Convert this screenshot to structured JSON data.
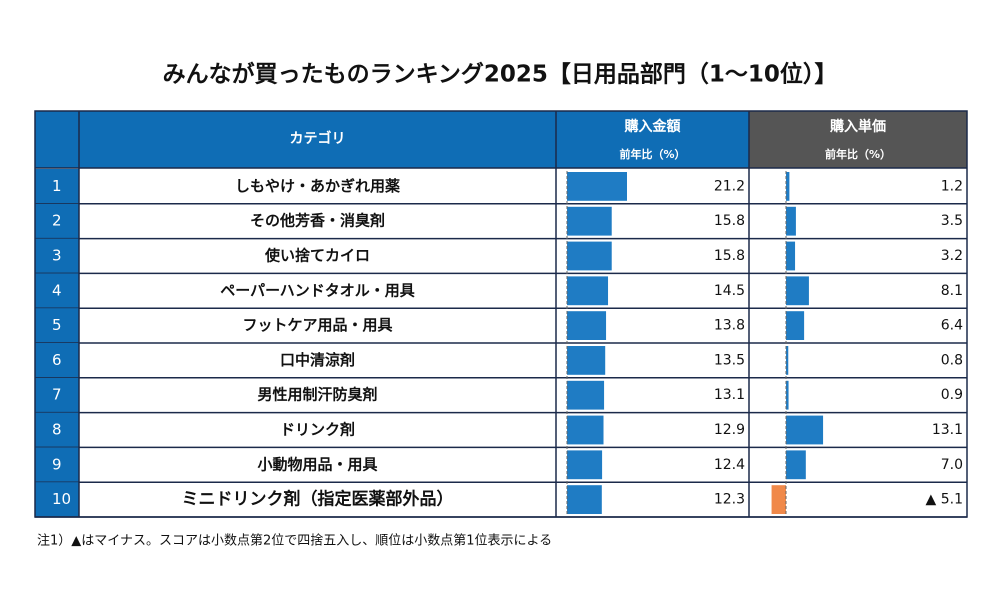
{
  "title": "みんなが買ったものランキング2025【日用品部門（1～10位）】",
  "table": {
    "header": {
      "category": "カテゴリ",
      "amount": "購入金額",
      "amount_sub": "前年比（%）",
      "price": "購入単価",
      "price_sub": "前年比（%）"
    },
    "ranks": [
      1,
      2,
      3,
      4,
      5,
      6,
      7,
      8,
      9,
      10
    ],
    "categories": [
      "しもやけ・あかぎれ用薬",
      "その他芳香・消臭剤",
      "使い捨てカイロ",
      "ペーパーハンドタオル・用具",
      "フットケア用品・用具",
      "口中清涼剤",
      "男性用制汗防臭剤",
      "ドリンク剤",
      "小動物用品・用具",
      "ミニドリンク剤（指定医薬部外品）"
    ],
    "amount_change": [
      21.2,
      15.8,
      15.8,
      14.5,
      13.8,
      13.5,
      13.1,
      12.9,
      12.4,
      12.3
    ],
    "price_change": [
      1.2,
      3.5,
      3.2,
      8.1,
      6.4,
      0.8,
      0.9,
      13.1,
      7.0,
      -5.1
    ],
    "price_change_labels": [
      "1.2",
      "3.5",
      "3.2",
      "8.1",
      "6.4",
      "0.8",
      "0.9",
      "13.1",
      "7.0",
      "▲ 5.1"
    ],
    "bar_color": "#1f7cc4",
    "negative_color": "#f0894a"
  },
  "footnote": "注1）▲はマイナス。スコアは小数点第2位で四捨五入し、順位は小数点第1位表示による"
}
